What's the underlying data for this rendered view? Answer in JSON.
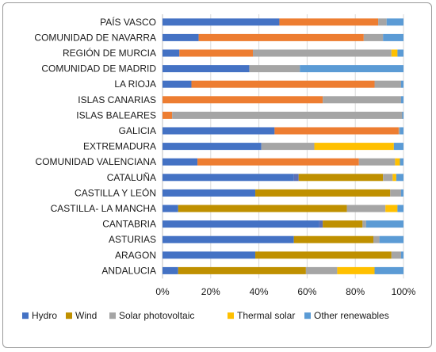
{
  "chart_data": {
    "type": "bar",
    "orientation": "horizontal",
    "stacked": "percent",
    "categories": [
      "PAÍS VASCO",
      "COMUNIDAD DE NAVARRA",
      "REGIÓN DE MURCIA",
      "COMUNIDAD DE MADRID",
      "LA RIOJA",
      "ISLAS CANARIAS",
      "ISLAS BALEARES",
      "GALICIA",
      "EXTREMADURA",
      "COMUNIDAD VALENCIANA",
      "CATALUÑA",
      "CASTILLA Y LEÓN",
      "CASTILLA- LA MANCHA",
      "CANTABRIA",
      "ASTURIAS",
      "ARAGON",
      "ANDALUCIA"
    ],
    "xlim": [
      0,
      100
    ],
    "x_ticks": [
      "0%",
      "20%",
      "40%",
      "60%",
      "80%",
      "100%"
    ],
    "grid": "vertical",
    "legend_position": "bottom",
    "title": "",
    "xlabel": "",
    "ylabel": "",
    "segments": [
      [
        {
          "color": "#4472C4",
          "value": 48.5
        },
        {
          "color": "#ED7D31",
          "value": 41
        },
        {
          "color": "#A5A5A5",
          "value": 3.5
        },
        {
          "color": "#5B9BD5",
          "value": 7
        }
      ],
      [
        {
          "color": "#4472C4",
          "value": 15
        },
        {
          "color": "#ED7D31",
          "value": 68.5
        },
        {
          "color": "#A5A5A5",
          "value": 8
        },
        {
          "color": "#5B9BD5",
          "value": 8.5
        }
      ],
      [
        {
          "color": "#4472C4",
          "value": 7
        },
        {
          "color": "#ED7D31",
          "value": 30.5
        },
        {
          "color": "#A5A5A5",
          "value": 57.5
        },
        {
          "color": "#FFC000",
          "value": 2.5
        },
        {
          "color": "#5B9BD5",
          "value": 2.5
        }
      ],
      [
        {
          "color": "#4472C4",
          "value": 36
        },
        {
          "color": "#A5A5A5",
          "value": 21
        },
        {
          "color": "#5B9BD5",
          "value": 43
        }
      ],
      [
        {
          "color": "#4472C4",
          "value": 12
        },
        {
          "color": "#ED7D31",
          "value": 76
        },
        {
          "color": "#A5A5A5",
          "value": 11
        },
        {
          "color": "#5B9BD5",
          "value": 1
        }
      ],
      [
        {
          "color": "#ED7D31",
          "value": 66.5
        },
        {
          "color": "#A5A5A5",
          "value": 32.5
        },
        {
          "color": "#5B9BD5",
          "value": 1
        }
      ],
      [
        {
          "color": "#ED7D31",
          "value": 4
        },
        {
          "color": "#A5A5A5",
          "value": 95.5
        },
        {
          "color": "#5B9BD5",
          "value": 0.5
        }
      ],
      [
        {
          "color": "#4472C4",
          "value": 46.5
        },
        {
          "color": "#ED7D31",
          "value": 51.5
        },
        {
          "color": "#A5A5A5",
          "value": 0.5
        },
        {
          "color": "#5B9BD5",
          "value": 1.5
        }
      ],
      [
        {
          "color": "#4472C4",
          "value": 41
        },
        {
          "color": "#A5A5A5",
          "value": 22
        },
        {
          "color": "#FFC000",
          "value": 33
        },
        {
          "color": "#5B9BD5",
          "value": 4
        }
      ],
      [
        {
          "color": "#4472C4",
          "value": 14.5
        },
        {
          "color": "#ED7D31",
          "value": 67
        },
        {
          "color": "#A5A5A5",
          "value": 15
        },
        {
          "color": "#FFC000",
          "value": 2
        },
        {
          "color": "#5B9BD5",
          "value": 1.5
        }
      ],
      [
        {
          "color": "#4472C4",
          "value": 54.5
        },
        {
          "color": "#5B6FB5",
          "value": 2
        },
        {
          "color": "#BF9000",
          "value": 35
        },
        {
          "color": "#A5A5A5",
          "value": 4
        },
        {
          "color": "#FFC000",
          "value": 1.5
        },
        {
          "color": "#5B9BD5",
          "value": 3
        }
      ],
      [
        {
          "color": "#4472C4",
          "value": 38.5
        },
        {
          "color": "#BF9000",
          "value": 56
        },
        {
          "color": "#A5A5A5",
          "value": 4.5
        },
        {
          "color": "#5B9BD5",
          "value": 1
        }
      ],
      [
        {
          "color": "#4472C4",
          "value": 6.5
        },
        {
          "color": "#BF9000",
          "value": 70
        },
        {
          "color": "#A5A5A5",
          "value": 16
        },
        {
          "color": "#FFC000",
          "value": 5
        },
        {
          "color": "#5B9BD5",
          "value": 2.5
        }
      ],
      [
        {
          "color": "#4472C4",
          "value": 65
        },
        {
          "color": "#5B6FB5",
          "value": 1.5
        },
        {
          "color": "#BF9000",
          "value": 16.5
        },
        {
          "color": "#A5A5A5",
          "value": 1.5
        },
        {
          "color": "#5B9BD5",
          "value": 15.5
        }
      ],
      [
        {
          "color": "#4472C4",
          "value": 54.5
        },
        {
          "color": "#BF9000",
          "value": 33
        },
        {
          "color": "#A5A5A5",
          "value": 2.5
        },
        {
          "color": "#5B9BD5",
          "value": 10
        }
      ],
      [
        {
          "color": "#4472C4",
          "value": 38.5
        },
        {
          "color": "#BF9000",
          "value": 56.5
        },
        {
          "color": "#A5A5A5",
          "value": 4
        },
        {
          "color": "#5B9BD5",
          "value": 1
        }
      ],
      [
        {
          "color": "#4472C4",
          "value": 6.5
        },
        {
          "color": "#BF9000",
          "value": 53
        },
        {
          "color": "#A5A5A5",
          "value": 13
        },
        {
          "color": "#FFC000",
          "value": 15.5
        },
        {
          "color": "#5B9BD5",
          "value": 12
        }
      ]
    ],
    "legend": [
      {
        "label": "Hydro",
        "color": "#4472C4"
      },
      {
        "label": "Wind",
        "color": "#BF9000"
      },
      {
        "label": "Solar photovoltaic",
        "color": "#A5A5A5"
      },
      {
        "label": "Thermal solar",
        "color": "#FFC000"
      },
      {
        "label": "Other renewables",
        "color": "#5B9BD5"
      }
    ]
  }
}
